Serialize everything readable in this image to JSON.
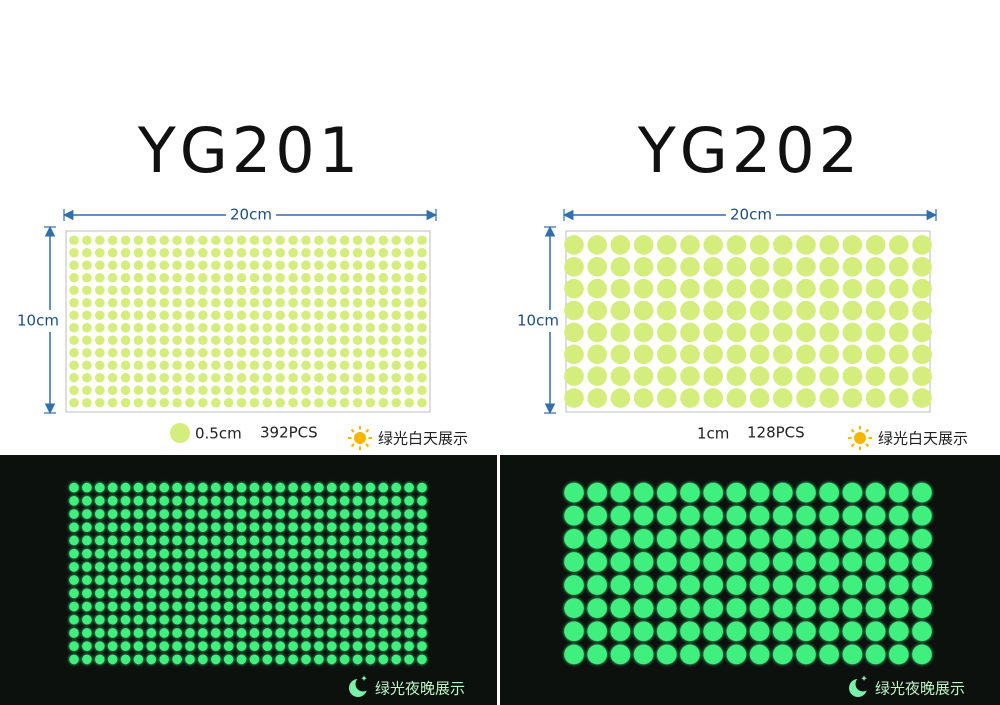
{
  "panels": [
    {
      "title": "YG201",
      "width_label": "20cm",
      "height_label": "10cm",
      "dot_size": "0.5cm",
      "count": "392PCS",
      "day_caption": "绿光白天展示",
      "night_caption": "绿光夜晚展示"
    },
    {
      "title": "YG202",
      "width_label": "20cm",
      "height_label": "10cm",
      "dot_size": "1cm",
      "count": "128PCS",
      "day_caption": "绿光白天展示",
      "night_caption": "绿光夜晚展示"
    }
  ]
}
